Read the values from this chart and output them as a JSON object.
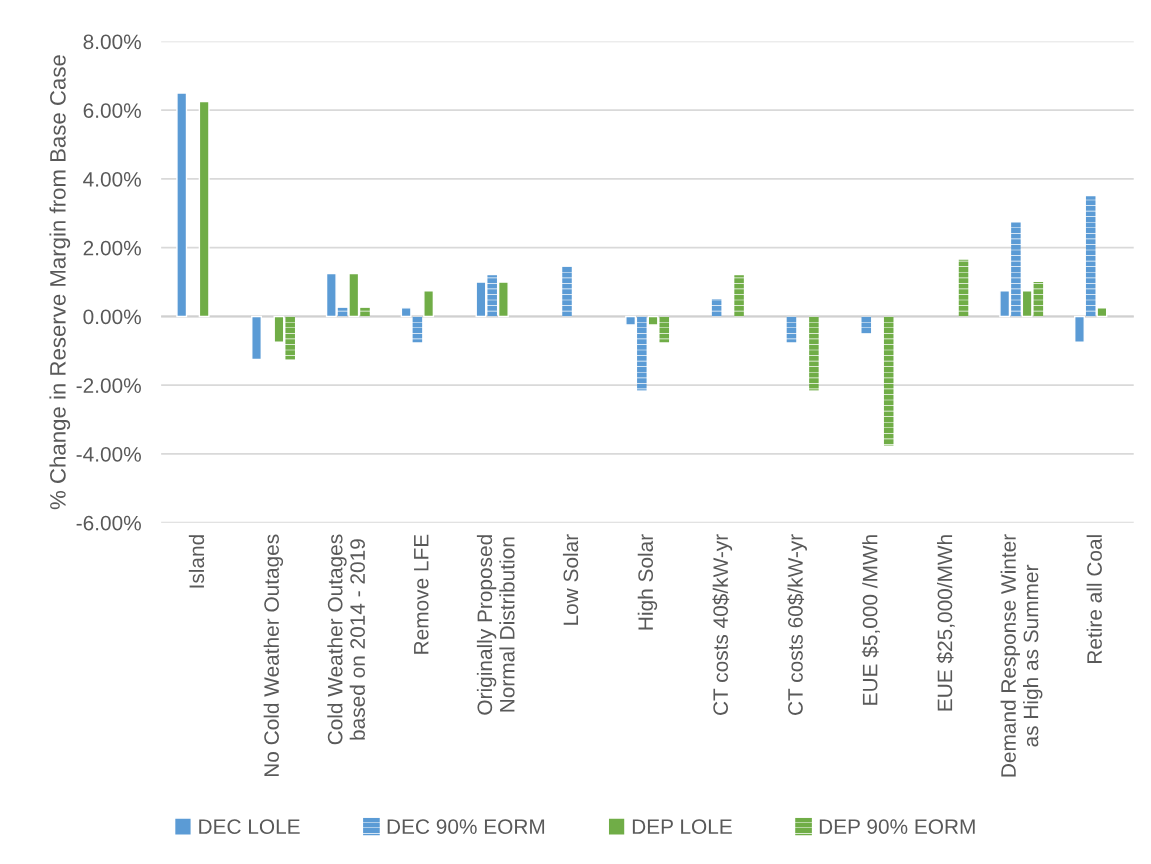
{
  "chart_data": {
    "type": "bar",
    "ylabel": "% Change in Reserve Margin from Base Case",
    "categories": [
      "Island",
      "No Cold Weather Outages",
      "Cold Weather Outages\nbased on 2014 - 2019",
      "Remove LFE",
      "Originally Proposed\nNormal Distribution",
      "Low Solar",
      "High Solar",
      "CT costs 40$/kW-yr",
      "CT costs 60$/kW-yr",
      "EUE $5,000 /MWh",
      "EUE $25,000/MWh",
      "Demand Response Winter\nas High as Summer",
      "Retire all Coal"
    ],
    "series": [
      {
        "name": "DEC LOLE",
        "color": "#5b9bd5",
        "line_style": "solid",
        "values": [
          6.5,
          -1.25,
          1.25,
          0.25,
          1.0,
          null,
          -0.25,
          null,
          null,
          null,
          null,
          0.75,
          -0.75
        ]
      },
      {
        "name": "DEC 90% EORM",
        "color": "#5b9bd5",
        "line_style": "dashed",
        "values": [
          null,
          null,
          0.25,
          -0.75,
          1.2,
          1.45,
          -2.15,
          0.5,
          -0.75,
          -0.5,
          null,
          2.75,
          3.5
        ]
      },
      {
        "name": "DEP LOLE",
        "color": "#70ad47",
        "line_style": "solid",
        "values": [
          6.25,
          -0.75,
          1.25,
          0.75,
          1.0,
          null,
          -0.25,
          null,
          null,
          null,
          null,
          0.75,
          0.25
        ]
      },
      {
        "name": "DEP 90% EORM",
        "color": "#70ad47",
        "line_style": "dashed",
        "values": [
          null,
          -1.25,
          0.25,
          null,
          null,
          null,
          -0.75,
          1.2,
          -2.15,
          -3.75,
          1.65,
          1.0,
          null
        ]
      }
    ],
    "ylim": [
      -6,
      8
    ],
    "yticks": [
      {
        "value": -6,
        "label": "-6.00%"
      },
      {
        "value": -4,
        "label": "-4.00%"
      },
      {
        "value": -2,
        "label": "-2.00%"
      },
      {
        "value": 0,
        "label": "0.00%"
      },
      {
        "value": 2,
        "label": "2.00%"
      },
      {
        "value": 4,
        "label": "4.00%"
      },
      {
        "value": 6,
        "label": "6.00%"
      },
      {
        "value": 8,
        "label": "8.00%"
      }
    ],
    "grid": "y",
    "legend": "bottom"
  }
}
